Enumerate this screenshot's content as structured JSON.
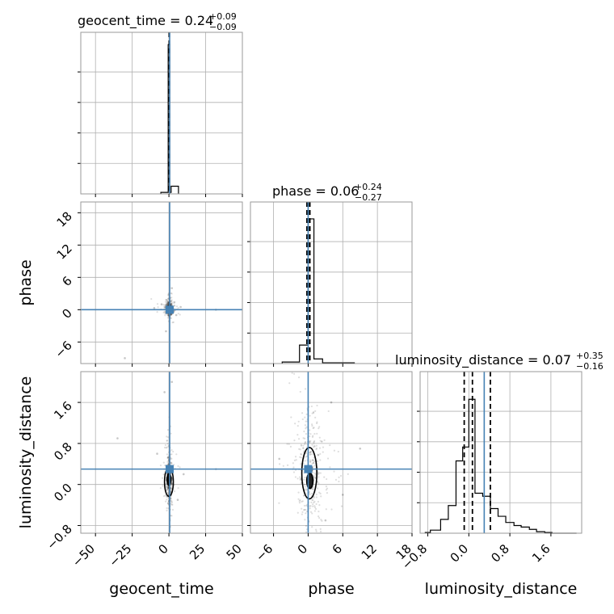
{
  "chart_data": {
    "type": "corner",
    "parameters": [
      "geocent_time",
      "phase",
      "luminosity_distance"
    ],
    "injection": {
      "color": "#4682b4",
      "geocent_time": 0.5,
      "phase": 0.0,
      "luminosity_distance": 0.3
    },
    "quantile_color": "#000000",
    "sample_color": "#000000",
    "grid": true,
    "marginals": [
      {
        "param": "geocent_time",
        "title_main": "geocent_time = 0.24",
        "title_plus": "+0.09",
        "title_minus": "−0.09",
        "xlim": [
          -60,
          50
        ],
        "xticks": [
          -50,
          -25,
          0,
          25,
          50
        ],
        "xticklabels": [
          "−50",
          "−25",
          "0",
          "25",
          "50"
        ],
        "bins": [
          [
            -5.5,
            -0.5,
            0.01
          ],
          [
            -0.5,
            0.5,
            0.97
          ],
          [
            0.5,
            1.5,
            0.01
          ],
          [
            1.5,
            6.5,
            0.05
          ]
        ],
        "ymax": 1.0,
        "quantiles": [
          0.15,
          0.24,
          0.33
        ]
      },
      {
        "param": "phase",
        "title_main": "phase = 0.06",
        "title_plus": "+0.24",
        "title_minus": "−0.27",
        "xlim": [
          -10,
          18
        ],
        "xticks": [
          -6,
          0,
          6,
          12,
          18
        ],
        "xticklabels": [
          "−6",
          "0",
          "6",
          "12",
          "18"
        ],
        "bins": [
          [
            -4.5,
            -1.5,
            0.01
          ],
          [
            -1.5,
            0.0,
            0.12
          ],
          [
            0.0,
            1.0,
            0.94
          ],
          [
            1.0,
            2.5,
            0.03
          ],
          [
            2.5,
            8.0,
            0.005
          ]
        ],
        "ymax": 1.0,
        "quantiles": [
          -0.21,
          0.06,
          0.3
        ]
      },
      {
        "param": "luminosity_distance",
        "title_main": "luminosity_distance = 0.07",
        "title_plus": "+0.35",
        "title_minus": "−0.16",
        "xlim": [
          -0.95,
          2.2
        ],
        "xticks": [
          -0.8,
          0.0,
          0.8,
          1.6
        ],
        "xticklabels": [
          "−0.8",
          "0.0",
          "0.8",
          "1.6"
        ],
        "bins": [
          [
            -0.85,
            -0.75,
            0.005
          ],
          [
            -0.75,
            -0.55,
            0.02
          ],
          [
            -0.55,
            -0.4,
            0.09
          ],
          [
            -0.4,
            -0.25,
            0.18
          ],
          [
            -0.25,
            -0.12,
            0.47
          ],
          [
            -0.12,
            0.0,
            0.56
          ],
          [
            0.0,
            0.12,
            0.87
          ],
          [
            0.12,
            0.27,
            0.26
          ],
          [
            0.27,
            0.42,
            0.24
          ],
          [
            0.42,
            0.57,
            0.16
          ],
          [
            0.57,
            0.72,
            0.11
          ],
          [
            0.72,
            0.88,
            0.07
          ],
          [
            0.88,
            1.02,
            0.05
          ],
          [
            1.02,
            1.18,
            0.04
          ],
          [
            1.18,
            1.32,
            0.025
          ],
          [
            1.32,
            1.48,
            0.01
          ],
          [
            1.48,
            1.62,
            0.005
          ],
          [
            1.62,
            2.1,
            0.0
          ]
        ],
        "ymax": 1.0,
        "quantiles": [
          -0.09,
          0.07,
          0.42
        ]
      }
    ],
    "joints": [
      {
        "x": "geocent_time",
        "y": "phase",
        "xlim": [
          -60,
          50
        ],
        "ylim": [
          -10,
          20
        ],
        "yticks": [
          -6,
          0,
          6,
          12,
          18
        ],
        "yticklabels": [
          "−6",
          "0",
          "6",
          "12",
          "18"
        ],
        "center": [
          0.2,
          0.2
        ],
        "spread": [
          1.2,
          0.7
        ],
        "outliers": [
          [
            -30,
            -9
          ],
          [
            32,
            0
          ],
          [
            -5,
            1
          ],
          [
            5,
            -1
          ],
          [
            8,
            0.5
          ],
          [
            -10,
            0.3
          ],
          [
            2,
            4
          ],
          [
            -2,
            -4
          ]
        ],
        "contours": []
      },
      {
        "x": "geocent_time",
        "y": "luminosity_distance",
        "xlim": [
          -60,
          50
        ],
        "ylim": [
          -0.95,
          2.2
        ],
        "yticks": [
          -0.8,
          0.0,
          0.8,
          1.6
        ],
        "yticklabels": [
          "−0.8",
          "0.0",
          "0.8",
          "1.6"
        ],
        "center": [
          0.2,
          0.1
        ],
        "spread": [
          1.0,
          0.25
        ],
        "outliers": [
          [
            -35,
            0.9
          ],
          [
            32,
            0.3
          ],
          [
            -8,
            0.6
          ],
          [
            6,
            -0.3
          ],
          [
            -3,
            1.8
          ],
          [
            2,
            2.0
          ],
          [
            10,
            0.2
          ]
        ],
        "contours": [
          {
            "cx": 0.0,
            "cy": 0.05,
            "rx": 3.0,
            "ry": 0.28
          },
          {
            "cx": 0.0,
            "cy": 0.1,
            "rx": 1.2,
            "ry": 0.12
          }
        ]
      },
      {
        "x": "phase",
        "y": "luminosity_distance",
        "xlim": [
          -10,
          18
        ],
        "ylim": [
          -0.95,
          2.2
        ],
        "yticks": [
          -0.8,
          0.0,
          0.8,
          1.6
        ],
        "yticklabels": [
          "−0.8",
          "0.0",
          "0.8",
          "1.6"
        ],
        "center": [
          0.3,
          0.3
        ],
        "spread": [
          1.1,
          0.55
        ],
        "outliers": [
          [
            9,
            0.7
          ],
          [
            4,
            1.6
          ],
          [
            -5,
            0.5
          ],
          [
            6,
            -0.2
          ],
          [
            3,
            -0.7
          ]
        ],
        "contours": [
          {
            "cx": 0.2,
            "cy": 0.22,
            "rx": 1.3,
            "ry": 0.5
          },
          {
            "cx": 0.3,
            "cy": 0.07,
            "rx": 0.55,
            "ry": 0.15
          }
        ]
      }
    ]
  }
}
